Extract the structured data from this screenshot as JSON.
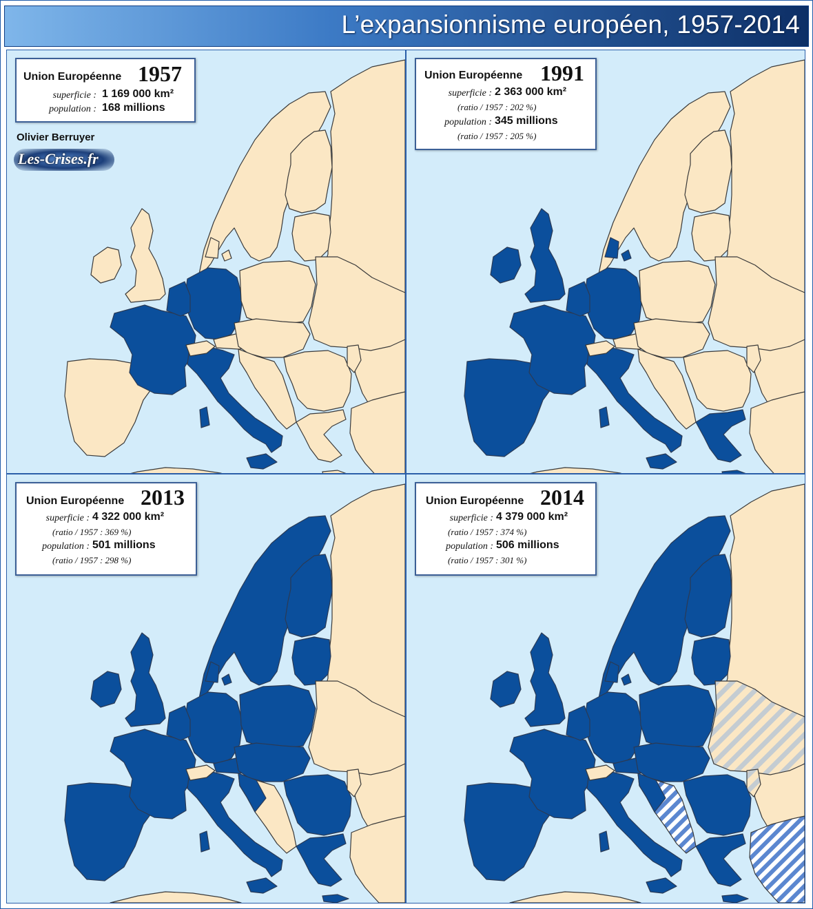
{
  "title": "L’expansionnisme européen, 1957-2014",
  "author": "Olivier Berruyer",
  "site": "Les-Crises.fr",
  "colors": {
    "sea": "#d3ecfa",
    "non_eu_land": "#fbe7c4",
    "eu_member": "#0b4f9c",
    "candidate_hatch": "#5b87d0",
    "association_hatch": "#c4ccd2"
  },
  "legend_labels": {
    "union": "Union Européenne",
    "area": "superficie :",
    "population": "population :"
  },
  "panels": [
    {
      "year": "1957",
      "area": "1 169 000 km²",
      "area_ratio": "",
      "population": "168 millions",
      "population_ratio": "",
      "members": [
        "France",
        "West Germany",
        "Italy",
        "Belgium",
        "Netherlands",
        "Luxembourg"
      ]
    },
    {
      "year": "1991",
      "area": "2 363 000 km²",
      "area_ratio": "(ratio / 1957 : 202 %)",
      "population": "345 millions",
      "population_ratio": "(ratio / 1957 : 205 %)",
      "members": [
        "France",
        "Germany",
        "Italy",
        "Belgium",
        "Netherlands",
        "Luxembourg",
        "United Kingdom",
        "Ireland",
        "Denmark",
        "Greece",
        "Spain",
        "Portugal"
      ]
    },
    {
      "year": "2013",
      "area": "4 322 000 km²",
      "area_ratio": "(ratio / 1957 : 369 %)",
      "population": "501 millions",
      "population_ratio": "(ratio / 1957 : 298 %)",
      "members": [
        "France",
        "Germany",
        "Italy",
        "Belgium",
        "Netherlands",
        "Luxembourg",
        "United Kingdom",
        "Ireland",
        "Denmark",
        "Greece",
        "Spain",
        "Portugal",
        "Austria",
        "Sweden",
        "Finland",
        "Poland",
        "Czech Republic",
        "Slovakia",
        "Hungary",
        "Slovenia",
        "Estonia",
        "Latvia",
        "Lithuania",
        "Cyprus",
        "Malta",
        "Romania",
        "Bulgaria",
        "Croatia"
      ]
    },
    {
      "year": "2014",
      "area": "4 379 000 km²",
      "area_ratio": "(ratio / 1957 : 374 %)",
      "population": "506 millions",
      "population_ratio": "(ratio / 1957 : 301 %)",
      "members": [
        "France",
        "Germany",
        "Italy",
        "Belgium",
        "Netherlands",
        "Luxembourg",
        "United Kingdom",
        "Ireland",
        "Denmark",
        "Greece",
        "Spain",
        "Portugal",
        "Austria",
        "Sweden",
        "Finland",
        "Poland",
        "Czech Republic",
        "Slovakia",
        "Hungary",
        "Slovenia",
        "Estonia",
        "Latvia",
        "Lithuania",
        "Cyprus",
        "Malta",
        "Romania",
        "Bulgaria",
        "Croatia"
      ],
      "hatched_blue": [
        "Serbia",
        "Montenegro",
        "Albania",
        "Macedonia",
        "Turkey"
      ],
      "hatched_grey": [
        "Ukraine",
        "Moldova"
      ]
    }
  ]
}
